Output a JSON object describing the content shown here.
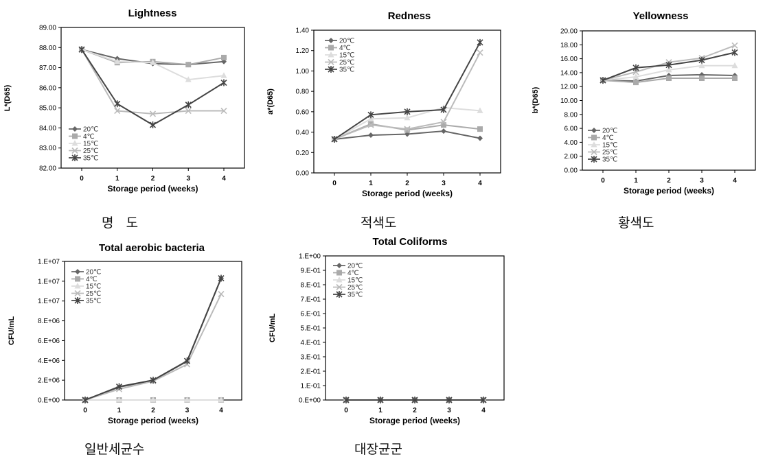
{
  "captions": [
    "명   도",
    "적색도",
    "황색도",
    "일반세균수",
    "대장균군"
  ],
  "legend_labels": [
    "20℃",
    "4℃",
    "15℃",
    "25℃",
    "35℃"
  ],
  "series_colors": [
    "#666666",
    "#aaaaaa",
    "#dddddd",
    "#bbbbbb",
    "#444444"
  ],
  "chart_data": [
    {
      "type": "line",
      "title": "Lightness",
      "xlabel": "Storage period (weeks)",
      "ylabel": "L*(D65)",
      "x": [
        0,
        1,
        2,
        3,
        4
      ],
      "ylim": [
        82,
        89
      ],
      "y_ticks": [
        "82.00",
        "83.00",
        "84.00",
        "85.00",
        "86.00",
        "87.00",
        "88.00",
        "89.00"
      ],
      "series": [
        {
          "name": "20℃",
          "values": [
            87.9,
            87.45,
            87.2,
            87.15,
            87.3
          ]
        },
        {
          "name": "4℃",
          "values": [
            87.9,
            87.25,
            87.3,
            87.15,
            87.5
          ]
        },
        {
          "name": "15℃",
          "values": [
            87.9,
            87.3,
            87.25,
            86.4,
            86.6
          ]
        },
        {
          "name": "25℃",
          "values": [
            87.9,
            84.85,
            84.7,
            84.85,
            84.85
          ]
        },
        {
          "name": "35℃",
          "values": [
            87.9,
            85.2,
            84.15,
            85.15,
            86.25
          ]
        }
      ]
    },
    {
      "type": "line",
      "title": "Redness",
      "xlabel": "Storage period (weeks)",
      "ylabel": "a*(D65)",
      "x": [
        0,
        1,
        2,
        3,
        4
      ],
      "ylim": [
        0,
        1.4
      ],
      "y_ticks": [
        "0.00",
        "0.20",
        "0.40",
        "0.60",
        "0.80",
        "1.00",
        "1.20",
        "1.40"
      ],
      "series": [
        {
          "name": "20℃",
          "values": [
            0.33,
            0.37,
            0.38,
            0.41,
            0.34
          ]
        },
        {
          "name": "4℃",
          "values": [
            0.33,
            0.48,
            0.42,
            0.47,
            0.43
          ]
        },
        {
          "name": "15℃",
          "values": [
            0.33,
            0.53,
            0.54,
            0.64,
            0.61
          ]
        },
        {
          "name": "25℃",
          "values": [
            0.33,
            0.47,
            0.43,
            0.5,
            1.18
          ]
        },
        {
          "name": "35℃",
          "values": [
            0.33,
            0.57,
            0.6,
            0.62,
            1.28
          ]
        }
      ]
    },
    {
      "type": "line",
      "title": "Yellowness",
      "xlabel": "Storage period (weeks)",
      "ylabel": "b*(D65)",
      "x": [
        0,
        1,
        2,
        3,
        4
      ],
      "ylim": [
        0,
        20
      ],
      "y_ticks": [
        "0.00",
        "2.00",
        "4.00",
        "6.00",
        "8.00",
        "10.00",
        "12.00",
        "14.00",
        "16.00",
        "18.00",
        "20.00"
      ],
      "series": [
        {
          "name": "20℃",
          "values": [
            12.9,
            12.8,
            13.6,
            13.7,
            13.6
          ]
        },
        {
          "name": "4℃",
          "values": [
            12.9,
            12.6,
            13.2,
            13.2,
            13.2
          ]
        },
        {
          "name": "15℃",
          "values": [
            12.9,
            13.4,
            14.4,
            15.0,
            15.0
          ]
        },
        {
          "name": "25℃",
          "values": [
            12.9,
            14.1,
            15.5,
            16.1,
            17.9
          ]
        },
        {
          "name": "35℃",
          "values": [
            12.9,
            14.7,
            15.1,
            15.8,
            16.9
          ]
        }
      ]
    },
    {
      "type": "line",
      "title": "Total aerobic bacteria",
      "xlabel": "Storage period (weeks)",
      "ylabel": "CFU/mL",
      "x": [
        0,
        1,
        2,
        3,
        4
      ],
      "ylim": [
        0,
        14000000
      ],
      "y_ticks": [
        "0.E+00",
        "2.E+06",
        "4.E+06",
        "6.E+06",
        "8.E+06",
        "1.E+07",
        "1.E+07",
        "1.E+07"
      ],
      "series": [
        {
          "name": "20℃",
          "values": [
            0,
            1300000,
            2000000,
            3900000,
            12300000
          ]
        },
        {
          "name": "4℃",
          "values": [
            0,
            0,
            0,
            0,
            0
          ]
        },
        {
          "name": "15℃",
          "values": [
            0,
            0,
            0,
            0,
            0
          ]
        },
        {
          "name": "25℃",
          "values": [
            0,
            1100000,
            1900000,
            3600000,
            10700000
          ]
        },
        {
          "name": "35℃",
          "values": [
            0,
            1350000,
            2000000,
            3950000,
            12300000
          ]
        }
      ]
    },
    {
      "type": "line",
      "title": "Total Coliforms",
      "xlabel": "Storage period (weeks)",
      "ylabel": "CFU/mL",
      "x": [
        0,
        1,
        2,
        3,
        4
      ],
      "ylim": [
        0,
        1
      ],
      "y_ticks": [
        "0.E+00",
        "1.E-01",
        "2.E-01",
        "3.E-01",
        "4.E-01",
        "5.E-01",
        "6.E-01",
        "7.E-01",
        "8.E-01",
        "9.E-01",
        "1.E+00"
      ],
      "series": [
        {
          "name": "20℃",
          "values": [
            0,
            0,
            0,
            0,
            0
          ]
        },
        {
          "name": "4℃",
          "values": [
            0,
            0,
            0,
            0,
            0
          ]
        },
        {
          "name": "15℃",
          "values": [
            0,
            0,
            0,
            0,
            0
          ]
        },
        {
          "name": "25℃",
          "values": [
            0,
            0,
            0,
            0,
            0
          ]
        },
        {
          "name": "35℃",
          "values": [
            0,
            0,
            0,
            0,
            0
          ]
        }
      ]
    }
  ]
}
